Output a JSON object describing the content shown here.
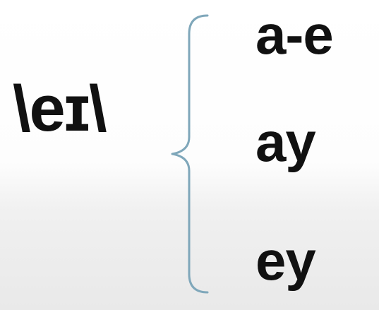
{
  "phoneme": "\\eɪ\\",
  "spellings": [
    "a-e",
    "ay",
    "ey"
  ],
  "colors": {
    "brace": "#7fa7ba",
    "text": "#111111"
  }
}
